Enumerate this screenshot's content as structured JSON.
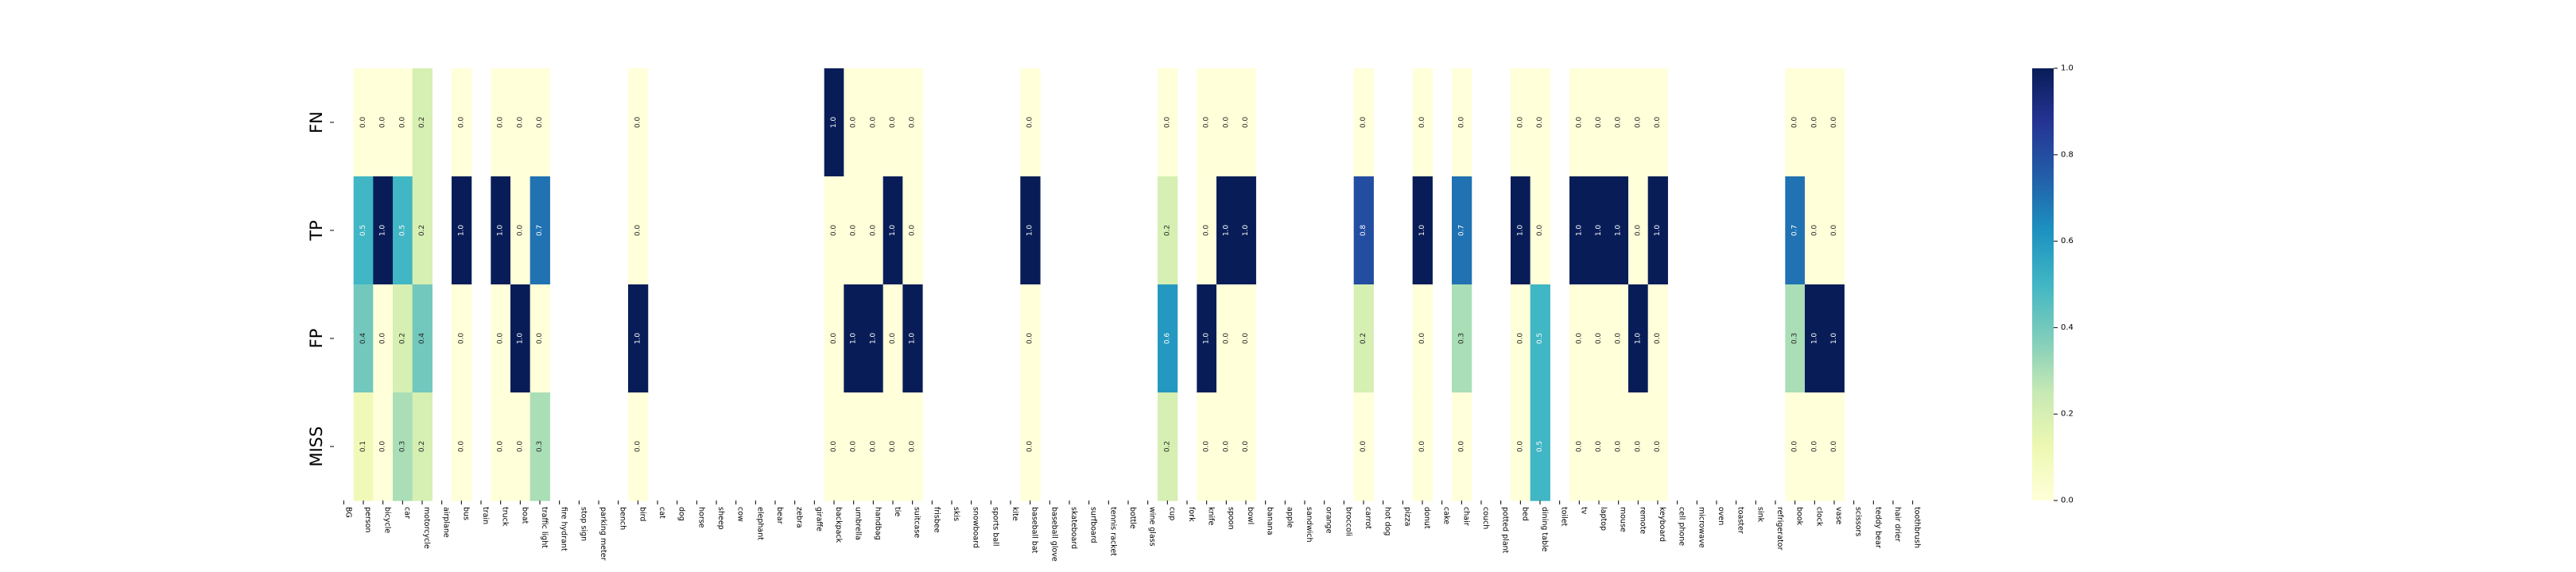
{
  "chart_data": {
    "type": "heatmap",
    "title": "",
    "xlabel": "",
    "ylabel": "",
    "rows": [
      "FN",
      "TP",
      "FP",
      "MISS"
    ],
    "columns": [
      "BG",
      "person",
      "bicycle",
      "car",
      "motorcycle",
      "airplane",
      "bus",
      "train",
      "truck",
      "boat",
      "traffic light",
      "fire hydrant",
      "stop sign",
      "parking meter",
      "bench",
      "bird",
      "cat",
      "dog",
      "horse",
      "sheep",
      "cow",
      "elephant",
      "bear",
      "zebra",
      "giraffe",
      "backpack",
      "umbrella",
      "handbag",
      "tie",
      "suitcase",
      "frisbee",
      "skis",
      "snowboard",
      "sports ball",
      "kite",
      "baseball bat",
      "baseball glove",
      "skateboard",
      "surfboard",
      "tennis racket",
      "bottle",
      "wine glass",
      "cup",
      "fork",
      "knife",
      "spoon",
      "bowl",
      "banana",
      "apple",
      "sandwich",
      "orange",
      "broccoli",
      "carrot",
      "hot dog",
      "pizza",
      "donut",
      "cake",
      "chair",
      "couch",
      "potted plant",
      "bed",
      "dining table",
      "toilet",
      "tv",
      "laptop",
      "mouse",
      "remote",
      "keyboard",
      "cell phone",
      "microwave",
      "oven",
      "toaster",
      "sink",
      "refrigerator",
      "book",
      "clock",
      "vase",
      "scissors",
      "teddy bear",
      "hair drier",
      "toothbrush"
    ],
    "values": [
      [
        null,
        0.0,
        0.0,
        0.0,
        0.2,
        null,
        0.0,
        null,
        0.0,
        0.0,
        0.0,
        null,
        null,
        null,
        null,
        0.0,
        null,
        null,
        null,
        null,
        null,
        null,
        null,
        null,
        null,
        1.0,
        0.0,
        0.0,
        0.0,
        0.0,
        null,
        null,
        null,
        null,
        null,
        0.0,
        null,
        null,
        null,
        null,
        null,
        null,
        0.0,
        null,
        0.0,
        0.0,
        0.0,
        null,
        null,
        null,
        null,
        null,
        0.0,
        null,
        null,
        0.0,
        null,
        0.0,
        null,
        null,
        0.0,
        0.0,
        null,
        0.0,
        0.0,
        0.0,
        0.0,
        0.0,
        null,
        null,
        null,
        null,
        null,
        null,
        0.0,
        0.0,
        0.0,
        null,
        null,
        null,
        null
      ],
      [
        null,
        0.5,
        1.0,
        0.5,
        0.2,
        null,
        1.0,
        null,
        1.0,
        0.0,
        0.7,
        null,
        null,
        null,
        null,
        0.0,
        null,
        null,
        null,
        null,
        null,
        null,
        null,
        null,
        null,
        0.0,
        0.0,
        0.0,
        1.0,
        0.0,
        null,
        null,
        null,
        null,
        null,
        1.0,
        null,
        null,
        null,
        null,
        null,
        null,
        0.2,
        null,
        0.0,
        1.0,
        1.0,
        null,
        null,
        null,
        null,
        null,
        0.8,
        null,
        null,
        1.0,
        null,
        0.7,
        null,
        null,
        1.0,
        0.0,
        null,
        1.0,
        1.0,
        1.0,
        0.0,
        1.0,
        null,
        null,
        null,
        null,
        null,
        null,
        0.7,
        0.0,
        0.0,
        null,
        null,
        null,
        null
      ],
      [
        null,
        0.4,
        0.0,
        0.2,
        0.4,
        null,
        0.0,
        null,
        0.0,
        1.0,
        0.0,
        null,
        null,
        null,
        null,
        1.0,
        null,
        null,
        null,
        null,
        null,
        null,
        null,
        null,
        null,
        0.0,
        1.0,
        1.0,
        0.0,
        1.0,
        null,
        null,
        null,
        null,
        null,
        0.0,
        null,
        null,
        null,
        null,
        null,
        null,
        0.6,
        null,
        1.0,
        0.0,
        0.0,
        null,
        null,
        null,
        null,
        null,
        0.2,
        null,
        null,
        0.0,
        null,
        0.3,
        null,
        null,
        0.0,
        0.5,
        null,
        0.0,
        0.0,
        0.0,
        1.0,
        0.0,
        null,
        null,
        null,
        null,
        null,
        null,
        0.3,
        1.0,
        1.0,
        null,
        null,
        null,
        null
      ],
      [
        null,
        0.1,
        0.0,
        0.3,
        0.2,
        null,
        0.0,
        null,
        0.0,
        0.0,
        0.3,
        null,
        null,
        null,
        null,
        0.0,
        null,
        null,
        null,
        null,
        null,
        null,
        null,
        null,
        null,
        0.0,
        0.0,
        0.0,
        0.0,
        0.0,
        null,
        null,
        null,
        null,
        null,
        0.0,
        null,
        null,
        null,
        null,
        null,
        null,
        0.2,
        null,
        0.0,
        0.0,
        0.0,
        null,
        null,
        null,
        null,
        null,
        0.0,
        null,
        null,
        0.0,
        null,
        0.0,
        null,
        null,
        0.0,
        0.5,
        null,
        0.0,
        0.0,
        0.0,
        0.0,
        0.0,
        null,
        null,
        null,
        null,
        null,
        null,
        0.0,
        0.0,
        0.0,
        null,
        null,
        null,
        null
      ]
    ],
    "colormap": "YlGnBu",
    "colorbar": {
      "range": [
        0.0,
        1.0
      ],
      "ticks": [
        "0.0",
        "0.2",
        "0.4",
        "0.6",
        "0.8",
        "1.0"
      ]
    },
    "grid": false,
    "legend": "colorbar-right"
  }
}
